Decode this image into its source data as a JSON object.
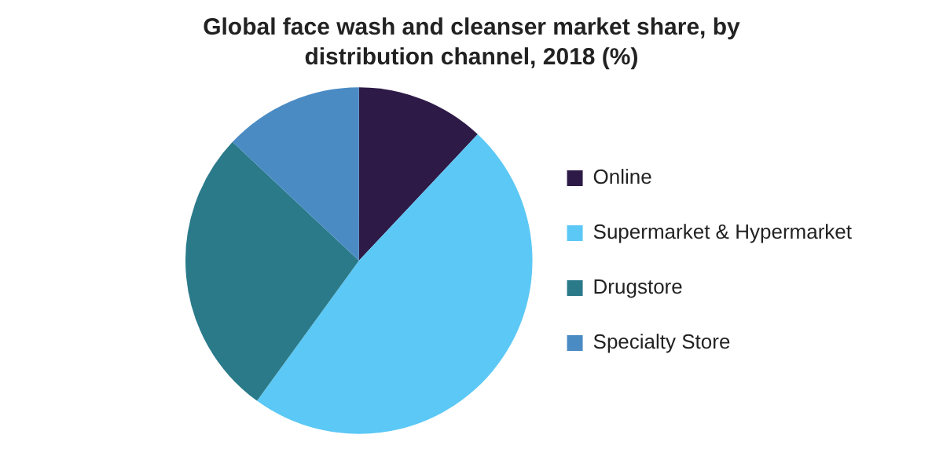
{
  "chart_data": {
    "type": "pie",
    "title": "Global face wash and cleanser market share, by distribution channel, 2018 (%)",
    "categories": [
      "Online",
      "Supermarket & Hypermarket",
      "Drugstore",
      "Specialty Store"
    ],
    "values": [
      12,
      48,
      27,
      13
    ],
    "colors": [
      "#2d1a47",
      "#5bc8f5",
      "#2a7a8a",
      "#4a8bc4"
    ],
    "legend": "right"
  }
}
